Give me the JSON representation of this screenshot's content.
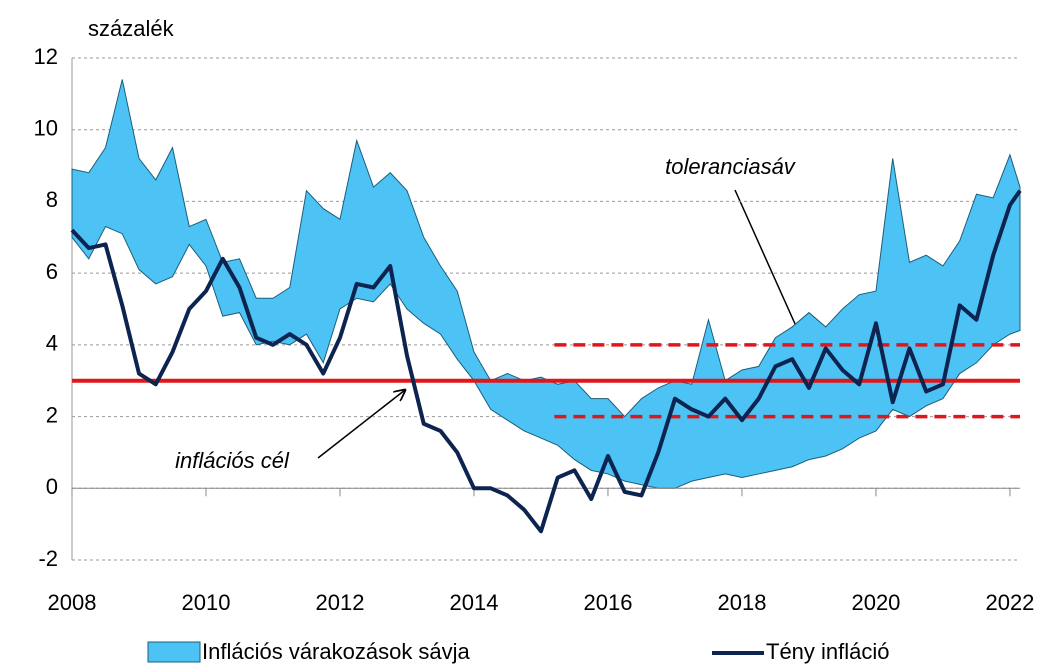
{
  "chart_data": {
    "type": "band_line",
    "y_label": "százalék",
    "x": [
      2008,
      2008.25,
      2008.5,
      2008.75,
      2009,
      2009.25,
      2009.5,
      2009.75,
      2010,
      2010.25,
      2010.5,
      2010.75,
      2011,
      2011.25,
      2011.5,
      2011.75,
      2012,
      2012.25,
      2012.5,
      2012.75,
      2013,
      2013.25,
      2013.5,
      2013.75,
      2014,
      2014.25,
      2014.5,
      2014.75,
      2015,
      2015.25,
      2015.5,
      2015.75,
      2016,
      2016.25,
      2016.5,
      2016.75,
      2017,
      2017.25,
      2017.5,
      2017.75,
      2018,
      2018.25,
      2018.5,
      2018.75,
      2019,
      2019.25,
      2019.5,
      2019.75,
      2020,
      2020.25,
      2020.5,
      2020.75,
      2021,
      2021.25,
      2021.5,
      2021.75,
      2022,
      2022.15
    ],
    "series": [
      {
        "name": "Inflációs várakozások sávja",
        "color": "#4dc3f5",
        "edge": "#1a5f7a",
        "lower": [
          7.0,
          6.4,
          7.3,
          7.1,
          6.1,
          5.7,
          5.9,
          6.8,
          6.2,
          4.8,
          4.9,
          4.0,
          4.1,
          4.0,
          4.3,
          3.5,
          5.0,
          5.3,
          5.2,
          5.7,
          5.0,
          4.6,
          4.3,
          3.6,
          3.0,
          2.2,
          1.9,
          1.6,
          1.4,
          1.2,
          0.8,
          0.5,
          0.4,
          0.2,
          0.1,
          0.0,
          0.0,
          0.2,
          0.3,
          0.4,
          0.3,
          0.4,
          0.5,
          0.6,
          0.8,
          0.9,
          1.1,
          1.4,
          1.6,
          2.2,
          2.0,
          2.3,
          2.5,
          3.2,
          3.5,
          4.0,
          4.3,
          4.4
        ],
        "upper": [
          8.9,
          8.8,
          9.5,
          11.4,
          9.2,
          8.6,
          9.5,
          7.3,
          7.5,
          6.3,
          6.4,
          5.3,
          5.3,
          5.6,
          8.3,
          7.8,
          7.5,
          9.7,
          8.4,
          8.8,
          8.3,
          7.0,
          6.2,
          5.5,
          3.8,
          3.0,
          3.2,
          3.0,
          3.1,
          2.9,
          3.0,
          2.5,
          2.5,
          2.0,
          2.5,
          2.8,
          3.0,
          2.9,
          4.7,
          3.0,
          3.3,
          3.4,
          4.2,
          4.5,
          4.9,
          4.5,
          5.0,
          5.4,
          5.5,
          9.2,
          6.3,
          6.5,
          6.2,
          6.9,
          8.2,
          8.1,
          9.3,
          8.4
        ]
      },
      {
        "name": "Tény infláció",
        "color": "#0d2350",
        "values": [
          7.2,
          6.7,
          6.8,
          5.1,
          3.2,
          2.9,
          3.8,
          5.0,
          5.5,
          6.4,
          5.6,
          4.2,
          4.0,
          4.3,
          4.0,
          3.2,
          4.2,
          5.7,
          5.6,
          6.2,
          3.7,
          1.8,
          1.6,
          1.0,
          0.0,
          0.0,
          -0.2,
          -0.6,
          -1.2,
          0.3,
          0.5,
          -0.3,
          0.9,
          -0.1,
          -0.2,
          1.0,
          2.5,
          2.2,
          2.0,
          2.5,
          1.9,
          2.5,
          3.4,
          3.6,
          2.8,
          3.9,
          3.3,
          2.9,
          4.6,
          2.4,
          3.9,
          2.7,
          2.9,
          5.1,
          4.7,
          6.5,
          7.9,
          8.3
        ]
      }
    ],
    "target": {
      "value": 3,
      "color": "#e0161b",
      "label": "inflációs cél"
    },
    "tolerance": {
      "values": [
        2,
        4
      ],
      "start": 2015.2,
      "color": "#e0161b",
      "label": "toleranciasáv"
    },
    "xlim": [
      2008,
      2022.15
    ],
    "xticks": [
      2008,
      2010,
      2012,
      2014,
      2016,
      2018,
      2020,
      2022
    ],
    "ylim": [
      -2,
      12
    ],
    "yticks": [
      -2,
      0,
      2,
      4,
      6,
      8,
      10,
      12
    ],
    "grid": true
  }
}
